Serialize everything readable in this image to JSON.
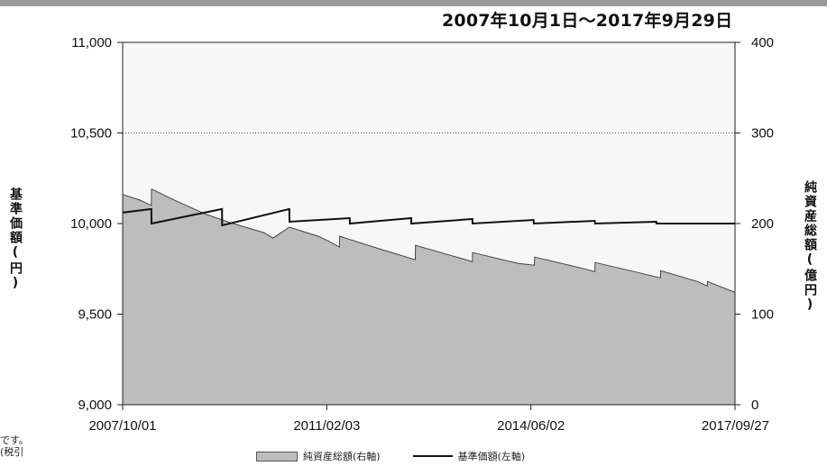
{
  "header": {
    "period": "2007年10月1日～2017年9月29日"
  },
  "axes": {
    "left_label": "基準価額(円)",
    "right_label": "純資産総額(億円)"
  },
  "legend": {
    "area_label": "純資産総額(右軸)",
    "line_label": "基準価額(左軸)"
  },
  "footnote": {
    "line1": "です。",
    "line2": "(税引"
  },
  "colors": {
    "area_fill": "#bdbdbd",
    "line": "#111111",
    "upper_background": "#f7f7f7"
  },
  "chart_data": {
    "type": "area",
    "title": "",
    "x_tick_labels": [
      "2007/10/01",
      "2011/02/03",
      "2014/06/02",
      "2017/09/27"
    ],
    "left_axis": {
      "label": "基準価額(円)",
      "range": [
        9000,
        11000
      ],
      "ticks": [
        9000,
        9500,
        10000,
        10500,
        11000
      ],
      "tick_labels": [
        "9,000",
        "9,500",
        "10,000",
        "10,500",
        "11,000"
      ]
    },
    "right_axis": {
      "label": "純資産総額(億円)",
      "range": [
        0,
        400
      ],
      "ticks": [
        0,
        100,
        200,
        300,
        400
      ],
      "tick_labels": [
        "0",
        "100",
        "200",
        "300",
        "400"
      ]
    },
    "x_range": [
      "2007-10-01",
      "2017-09-27"
    ],
    "gridlines": "dotted at 10,500",
    "legend_position": "bottom",
    "series": [
      {
        "name": "純資産総額(右軸)",
        "kind": "area",
        "axis": "right",
        "points": [
          [
            "2007-10-01",
            232
          ],
          [
            "2008-01-10",
            226
          ],
          [
            "2008-03-20",
            220
          ],
          [
            "2008-03-21",
            238
          ],
          [
            "2008-08-15",
            225
          ],
          [
            "2009-02-10",
            210
          ],
          [
            "2009-07-20",
            200
          ],
          [
            "2010-01-20",
            190
          ],
          [
            "2010-03-15",
            184
          ],
          [
            "2010-06-20",
            196
          ],
          [
            "2010-12-10",
            186
          ],
          [
            "2011-02-15",
            180
          ],
          [
            "2011-04-15",
            174
          ],
          [
            "2011-04-16",
            186
          ],
          [
            "2011-12-10",
            172
          ],
          [
            "2012-07-10",
            160
          ],
          [
            "2012-07-11",
            176
          ],
          [
            "2013-01-15",
            166
          ],
          [
            "2013-06-15",
            158
          ],
          [
            "2013-06-16",
            168
          ],
          [
            "2014-03-15",
            156
          ],
          [
            "2014-06-20",
            154
          ],
          [
            "2014-06-21",
            163
          ],
          [
            "2015-04-15",
            150
          ],
          [
            "2015-06-15",
            147
          ],
          [
            "2015-06-16",
            157
          ],
          [
            "2016-03-20",
            145
          ],
          [
            "2016-07-10",
            140
          ],
          [
            "2016-07-11",
            148
          ],
          [
            "2017-02-15",
            136
          ],
          [
            "2017-04-15",
            131
          ],
          [
            "2017-04-16",
            136
          ],
          [
            "2017-09-27",
            124
          ]
        ]
      },
      {
        "name": "基準価額(左軸)",
        "kind": "line",
        "axis": "left",
        "points": [
          [
            "2007-10-01",
            10060
          ],
          [
            "2008-03-20",
            10080
          ],
          [
            "2008-03-21",
            10000
          ],
          [
            "2009-05-15",
            10080
          ],
          [
            "2009-05-16",
            9990
          ],
          [
            "2010-06-20",
            10080
          ],
          [
            "2010-06-21",
            10010
          ],
          [
            "2011-06-15",
            10030
          ],
          [
            "2011-06-16",
            10000
          ],
          [
            "2012-06-15",
            10030
          ],
          [
            "2012-06-16",
            10000
          ],
          [
            "2013-06-15",
            10025
          ],
          [
            "2013-06-16",
            10000
          ],
          [
            "2014-06-15",
            10020
          ],
          [
            "2014-06-16",
            10000
          ],
          [
            "2015-06-15",
            10015
          ],
          [
            "2015-06-16",
            10000
          ],
          [
            "2016-06-15",
            10010
          ],
          [
            "2016-06-16",
            10000
          ],
          [
            "2017-09-27",
            10000
          ]
        ]
      }
    ]
  }
}
